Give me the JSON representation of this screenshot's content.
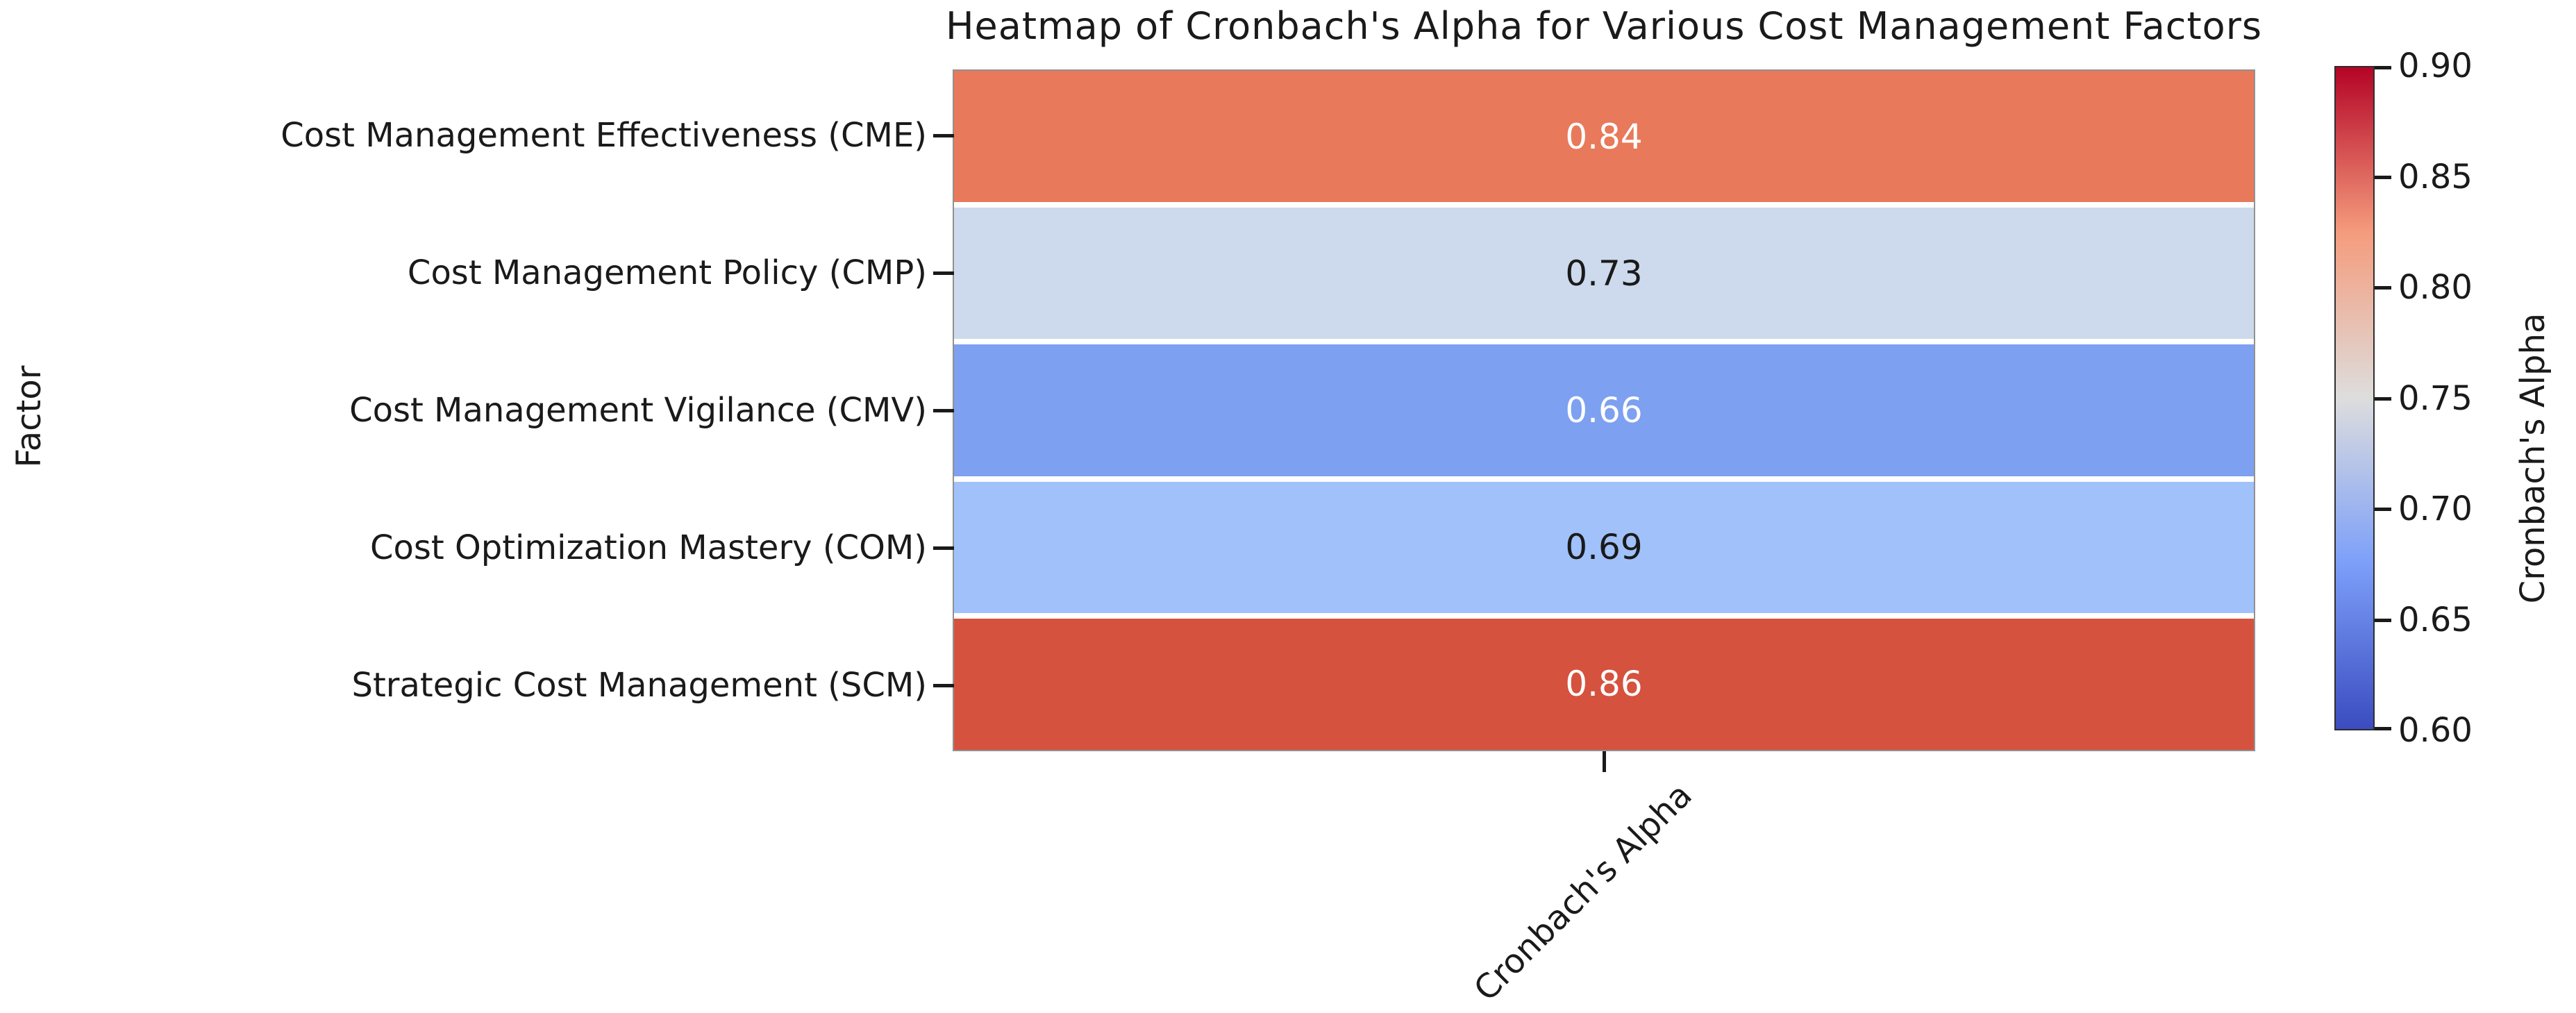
{
  "chart_data": {
    "type": "heatmap",
    "title": "Heatmap of Cronbach's Alpha for Various Cost Management Factors",
    "ylabel": "Factor",
    "x_tick_label": "Cronbach's Alpha",
    "categories": [
      "Cost Management Effectiveness (CME)",
      "Cost Management Policy (CMP)",
      "Cost Management Vigilance (CMV)",
      "Cost Optimization Mastery (COM)",
      "Strategic Cost Management (SCM)"
    ],
    "values": [
      0.84,
      0.73,
      0.66,
      0.69,
      0.86
    ],
    "rows": [
      {
        "factor": "Cost Management Effectiveness (CME)",
        "value": "0.84",
        "cell_color": "#E8795B",
        "text_color": "#ffffff"
      },
      {
        "factor": "Cost Management Policy (CMP)",
        "value": "0.73",
        "cell_color": "#CDD9EC",
        "text_color": "#1a1a1a"
      },
      {
        "factor": "Cost Management Vigilance (CMV)",
        "value": "0.66",
        "cell_color": "#7DA0F0",
        "text_color": "#ffffff"
      },
      {
        "factor": "Cost Optimization Mastery (COM)",
        "value": "0.69",
        "cell_color": "#A0C1FA",
        "text_color": "#1a1a1a"
      },
      {
        "factor": "Strategic Cost Management (SCM)",
        "value": "0.86",
        "cell_color": "#D5523F",
        "text_color": "#ffffff"
      }
    ],
    "colorbar": {
      "label": "Cronbach's Alpha",
      "min": 0.6,
      "max": 0.9,
      "ticks": [
        "0.90",
        "0.85",
        "0.80",
        "0.75",
        "0.70",
        "0.65",
        "0.60"
      ],
      "colormap": "coolwarm",
      "stops": [
        {
          "pct": 0,
          "color": "#3B4CC0"
        },
        {
          "pct": 25,
          "color": "#7C9FF9"
        },
        {
          "pct": 50,
          "color": "#DDDDDD"
        },
        {
          "pct": 75,
          "color": "#F59C7D"
        },
        {
          "pct": 100,
          "color": "#B40426"
        }
      ]
    },
    "layout": {
      "grid": "off",
      "legend": "colorbar-right",
      "annotations": "cell values shown in cells"
    }
  }
}
